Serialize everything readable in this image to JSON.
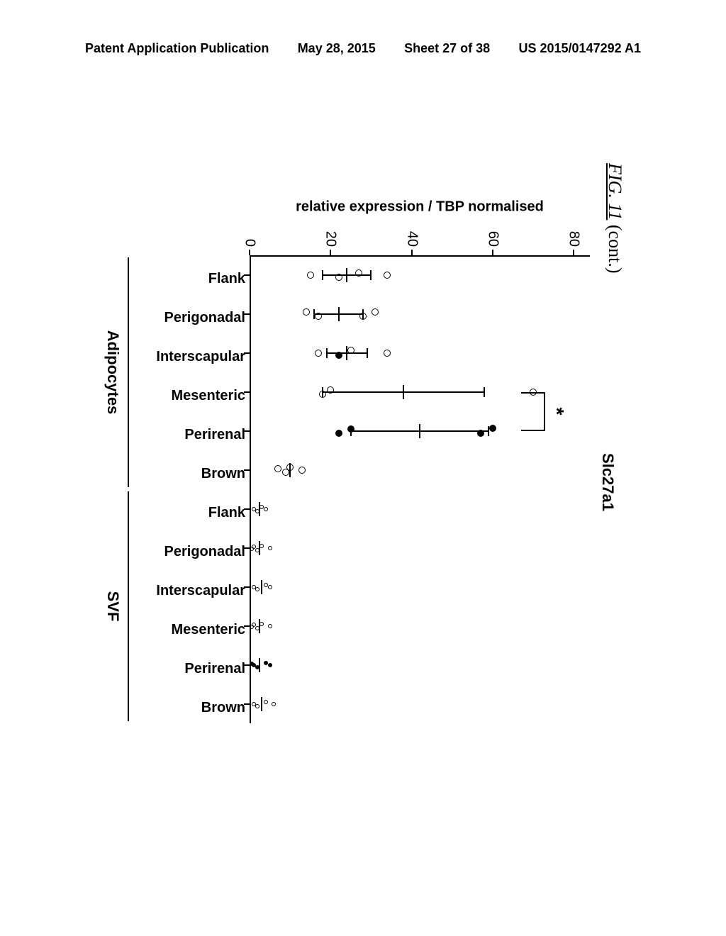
{
  "header": {
    "left": "Patent Application Publication",
    "centerPrefix": "May 28, 2015",
    "sheet": "Sheet 27 of 38",
    "right": "US 2015/0147292 A1"
  },
  "figure": {
    "label_prefix": "FIG. 11",
    "label_suffix": " (cont.)",
    "title": "Slc27a1",
    "ylabel": "relative expression / TBP normalised",
    "y": {
      "min": 0,
      "max": 84,
      "ticks": [
        0,
        20,
        40,
        60,
        80
      ]
    },
    "categories": [
      "Flank",
      "Perigonadal",
      "Interscapular",
      "Mesenteric",
      "Perirenal",
      "Brown",
      "Flank",
      "Perigonadal",
      "Interscapular",
      "Mesenteric",
      "Perirenal",
      "Brown"
    ],
    "groups": [
      {
        "label": "Adipocytes",
        "from": 0,
        "to": 5
      },
      {
        "label": "SVF",
        "from": 6,
        "to": 11
      }
    ],
    "series": [
      {
        "cat": 0,
        "mean": 24,
        "err": 6,
        "points": [
          {
            "y": 34,
            "dx": 0,
            "f": false
          },
          {
            "y": 27,
            "dx": -3,
            "f": false
          },
          {
            "y": 22,
            "dx": 3,
            "f": false
          },
          {
            "y": 15,
            "dx": 0,
            "f": false
          }
        ],
        "point_r": 5
      },
      {
        "cat": 1,
        "mean": 22,
        "err": 6,
        "points": [
          {
            "y": 31,
            "dx": -3,
            "f": false
          },
          {
            "y": 28,
            "dx": 3,
            "f": false
          },
          {
            "y": 17,
            "dx": 3,
            "f": false
          },
          {
            "y": 14,
            "dx": -3,
            "f": false
          }
        ],
        "point_r": 5
      },
      {
        "cat": 2,
        "mean": 24,
        "err": 5,
        "points": [
          {
            "y": 34,
            "dx": 0,
            "f": false
          },
          {
            "y": 25,
            "dx": -4,
            "f": false
          },
          {
            "y": 22,
            "dx": 3,
            "f": true
          },
          {
            "y": 17,
            "dx": 0,
            "f": false
          }
        ],
        "point_r": 5
      },
      {
        "cat": 3,
        "mean": 38,
        "err": 20,
        "points": [
          {
            "y": 70,
            "dx": 0,
            "f": false
          },
          {
            "y": 20,
            "dx": -3,
            "f": false
          },
          {
            "y": 18,
            "dx": 3,
            "f": false
          }
        ],
        "point_r": 5
      },
      {
        "cat": 4,
        "mean": 42,
        "err": 17,
        "points": [
          {
            "y": 60,
            "dx": -4,
            "f": true
          },
          {
            "y": 57,
            "dx": 3,
            "f": true
          },
          {
            "y": 25,
            "dx": -3,
            "f": true
          },
          {
            "y": 22,
            "dx": 3,
            "f": true
          }
        ],
        "point_r": 5
      },
      {
        "cat": 5,
        "mean": 10,
        "err": 0,
        "points": [
          {
            "y": 13,
            "dx": 0,
            "f": false
          },
          {
            "y": 10,
            "dx": -4,
            "f": false
          },
          {
            "y": 9,
            "dx": 3,
            "f": false
          },
          {
            "y": 7,
            "dx": -2,
            "f": false
          }
        ],
        "point_r": 5
      },
      {
        "cat": 6,
        "mean": 2.5,
        "err": 0,
        "points": [
          {
            "y": 4,
            "dx": 0,
            "f": false
          },
          {
            "y": 3,
            "dx": -3,
            "f": false
          },
          {
            "y": 2,
            "dx": 3,
            "f": false
          },
          {
            "y": 1,
            "dx": 0,
            "f": false
          }
        ],
        "point_r": 3
      },
      {
        "cat": 7,
        "mean": 2.5,
        "err": 0,
        "points": [
          {
            "y": 5,
            "dx": 0,
            "f": false
          },
          {
            "y": 3,
            "dx": -3,
            "f": false
          },
          {
            "y": 2,
            "dx": 3,
            "f": false
          },
          {
            "y": 1,
            "dx": -2,
            "f": false
          },
          {
            "y": 0.5,
            "dx": 1,
            "f": false
          }
        ],
        "point_r": 3
      },
      {
        "cat": 8,
        "mean": 3,
        "err": 0,
        "points": [
          {
            "y": 5,
            "dx": 0,
            "f": false
          },
          {
            "y": 4,
            "dx": -3,
            "f": false
          },
          {
            "y": 2,
            "dx": 3,
            "f": false
          },
          {
            "y": 1,
            "dx": 0,
            "f": false
          }
        ],
        "point_r": 3
      },
      {
        "cat": 9,
        "mean": 2.5,
        "err": 0,
        "points": [
          {
            "y": 5,
            "dx": 0,
            "f": false
          },
          {
            "y": 3,
            "dx": -3,
            "f": false
          },
          {
            "y": 2,
            "dx": 3,
            "f": false
          },
          {
            "y": 1,
            "dx": -2,
            "f": false
          },
          {
            "y": 0.5,
            "dx": 1,
            "f": false
          }
        ],
        "point_r": 3
      },
      {
        "cat": 10,
        "mean": 2.5,
        "err": 0,
        "points": [
          {
            "y": 5,
            "dx": 0,
            "f": true
          },
          {
            "y": 4,
            "dx": -3,
            "f": true
          },
          {
            "y": 2,
            "dx": 3,
            "f": true
          },
          {
            "y": 1,
            "dx": 0,
            "f": true
          },
          {
            "y": 0.5,
            "dx": -2,
            "f": true
          }
        ],
        "point_r": 3
      },
      {
        "cat": 11,
        "mean": 3,
        "err": 0,
        "points": [
          {
            "y": 6,
            "dx": 0,
            "f": false
          },
          {
            "y": 4,
            "dx": -3,
            "f": false
          },
          {
            "y": 2,
            "dx": 3,
            "f": false
          },
          {
            "y": 1,
            "dx": 0,
            "f": false
          }
        ],
        "point_r": 3
      }
    ],
    "significance": {
      "from": 3,
      "to": 4,
      "y": 73,
      "height": 6,
      "label": "*"
    },
    "style": {
      "mean_line_w": 20,
      "err_cap_w": 14,
      "background": "#ffffff",
      "axis_color": "#000000"
    }
  }
}
